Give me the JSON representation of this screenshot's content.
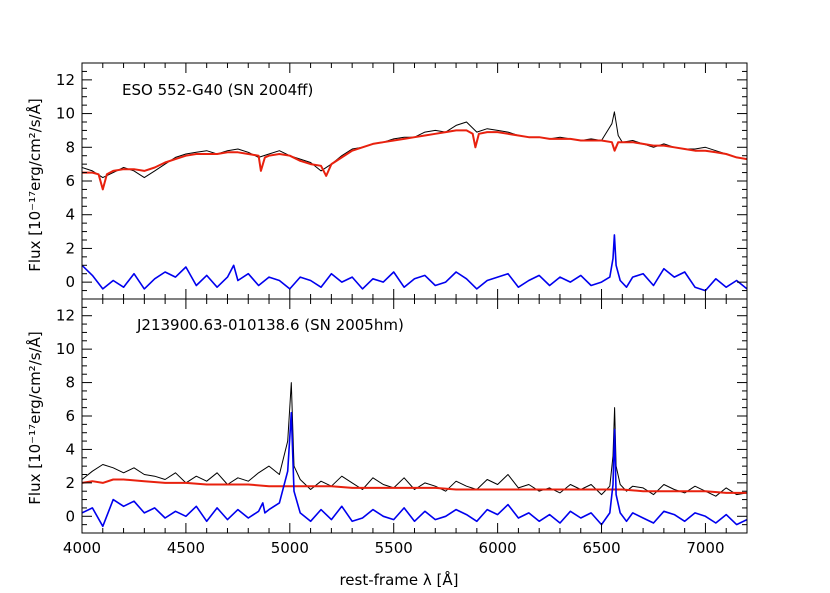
{
  "chart_data": [
    {
      "type": "line",
      "annotation": "ESO 552-G40 (SN 2004ff)",
      "ylabel": "Flux [10⁻¹⁷erg/cm²/s/Å]",
      "xlim": [
        4000,
        7200
      ],
      "ylim": [
        -1,
        13
      ],
      "xticks": [
        4000,
        4500,
        5000,
        5500,
        6000,
        6500,
        7000
      ],
      "yticks": [
        0,
        2,
        4,
        6,
        8,
        10,
        12
      ],
      "colors": {
        "observed": "#000000",
        "model": "#e8210e",
        "residual": "#0000ee"
      },
      "series": [
        {
          "key": "observed",
          "x": [
            4000,
            4050,
            4100,
            4150,
            4200,
            4250,
            4300,
            4350,
            4400,
            4450,
            4500,
            4550,
            4600,
            4650,
            4700,
            4750,
            4800,
            4850,
            4900,
            4950,
            5000,
            5050,
            5100,
            5150,
            5200,
            5250,
            5300,
            5350,
            5400,
            5450,
            5500,
            5550,
            5600,
            5650,
            5700,
            5750,
            5800,
            5850,
            5900,
            5950,
            6000,
            6050,
            6100,
            6150,
            6200,
            6250,
            6300,
            6350,
            6400,
            6450,
            6500,
            6550,
            6562,
            6580,
            6600,
            6650,
            6700,
            6750,
            6800,
            6850,
            6900,
            6950,
            7000,
            7050,
            7100,
            7150,
            7200
          ],
          "y": [
            6.8,
            6.6,
            6.2,
            6.5,
            6.8,
            6.6,
            6.2,
            6.6,
            7.0,
            7.4,
            7.6,
            7.7,
            7.8,
            7.6,
            7.8,
            7.9,
            7.7,
            7.4,
            7.6,
            7.8,
            7.5,
            7.3,
            7.1,
            6.6,
            7.0,
            7.5,
            7.9,
            8.0,
            8.2,
            8.3,
            8.5,
            8.6,
            8.6,
            8.9,
            9.0,
            8.9,
            9.3,
            9.5,
            8.9,
            9.1,
            9.0,
            8.9,
            8.7,
            8.6,
            8.6,
            8.5,
            8.6,
            8.5,
            8.4,
            8.5,
            8.4,
            9.4,
            10.1,
            8.7,
            8.3,
            8.4,
            8.2,
            8.0,
            8.2,
            8.0,
            7.9,
            7.9,
            8.0,
            7.8,
            7.6,
            7.4,
            7.3
          ]
        },
        {
          "key": "model",
          "x": [
            4000,
            4050,
            4080,
            4100,
            4120,
            4150,
            4200,
            4250,
            4300,
            4350,
            4400,
            4450,
            4500,
            4550,
            4600,
            4650,
            4700,
            4750,
            4800,
            4850,
            4861,
            4880,
            4900,
            4950,
            5000,
            5050,
            5100,
            5150,
            5175,
            5200,
            5250,
            5300,
            5350,
            5400,
            5450,
            5500,
            5550,
            5600,
            5650,
            5700,
            5750,
            5800,
            5850,
            5880,
            5893,
            5910,
            5950,
            6000,
            6050,
            6100,
            6150,
            6200,
            6250,
            6300,
            6350,
            6400,
            6450,
            6500,
            6550,
            6563,
            6580,
            6600,
            6650,
            6700,
            6750,
            6800,
            6850,
            6900,
            6950,
            7000,
            7050,
            7100,
            7150,
            7200
          ],
          "y": [
            6.5,
            6.5,
            6.4,
            5.5,
            6.4,
            6.6,
            6.7,
            6.7,
            6.6,
            6.8,
            7.1,
            7.3,
            7.5,
            7.6,
            7.6,
            7.6,
            7.7,
            7.7,
            7.6,
            7.5,
            6.6,
            7.4,
            7.5,
            7.6,
            7.5,
            7.2,
            7.0,
            6.9,
            6.3,
            7.0,
            7.4,
            7.8,
            8.0,
            8.2,
            8.3,
            8.4,
            8.5,
            8.6,
            8.7,
            8.8,
            8.9,
            9.0,
            9.0,
            8.8,
            8.0,
            8.8,
            8.9,
            8.9,
            8.8,
            8.7,
            8.6,
            8.6,
            8.5,
            8.5,
            8.5,
            8.4,
            8.4,
            8.4,
            8.3,
            7.8,
            8.3,
            8.3,
            8.3,
            8.2,
            8.1,
            8.1,
            8.0,
            7.9,
            7.8,
            7.8,
            7.7,
            7.6,
            7.4,
            7.3
          ]
        },
        {
          "key": "residual",
          "x": [
            4000,
            4050,
            4100,
            4150,
            4200,
            4250,
            4300,
            4350,
            4400,
            4450,
            4500,
            4550,
            4600,
            4650,
            4700,
            4730,
            4750,
            4800,
            4850,
            4900,
            4950,
            5000,
            5050,
            5100,
            5150,
            5200,
            5250,
            5300,
            5350,
            5400,
            5450,
            5500,
            5550,
            5600,
            5650,
            5700,
            5750,
            5800,
            5850,
            5900,
            5950,
            6000,
            6050,
            6100,
            6150,
            6200,
            6250,
            6300,
            6350,
            6400,
            6450,
            6500,
            6540,
            6555,
            6562,
            6570,
            6590,
            6620,
            6650,
            6700,
            6750,
            6800,
            6850,
            6900,
            6950,
            7000,
            7050,
            7100,
            7150,
            7200
          ],
          "y": [
            1.0,
            0.4,
            -0.4,
            0.1,
            -0.3,
            0.5,
            -0.4,
            0.2,
            0.6,
            0.3,
            0.9,
            -0.2,
            0.4,
            -0.3,
            0.3,
            1.0,
            0.1,
            0.5,
            -0.2,
            0.3,
            0.1,
            -0.4,
            0.3,
            0.1,
            -0.3,
            0.5,
            0.0,
            0.3,
            -0.4,
            0.2,
            0.0,
            0.6,
            -0.3,
            0.2,
            0.4,
            -0.2,
            0.0,
            0.6,
            0.2,
            -0.4,
            0.1,
            0.3,
            0.5,
            -0.3,
            0.1,
            0.4,
            -0.2,
            0.3,
            0.0,
            0.4,
            -0.2,
            0.0,
            0.3,
            1.4,
            2.8,
            1.0,
            0.1,
            -0.3,
            0.3,
            0.5,
            -0.2,
            0.8,
            0.3,
            0.6,
            -0.3,
            -0.5,
            0.2,
            -0.3,
            0.1,
            -0.4
          ]
        }
      ]
    },
    {
      "type": "line",
      "annotation": "J213900.63-010138.6 (SN 2005hm)",
      "ylabel": "Flux [10⁻¹⁷erg/cm²/s/Å]",
      "xlabel": "rest-frame λ [Å]",
      "xlim": [
        4000,
        7200
      ],
      "ylim": [
        -1,
        13
      ],
      "xticks": [
        4000,
        4500,
        5000,
        5500,
        6000,
        6500,
        7000
      ],
      "xticklabels": [
        "4000",
        "4500",
        "5000",
        "5500",
        "6000",
        "6500",
        "7000"
      ],
      "yticks": [
        0,
        2,
        4,
        6,
        8,
        10,
        12
      ],
      "colors": {
        "observed": "#000000",
        "model": "#e8210e",
        "residual": "#0000ee"
      },
      "series": [
        {
          "key": "observed",
          "x": [
            4000,
            4050,
            4100,
            4150,
            4200,
            4250,
            4300,
            4350,
            4400,
            4450,
            4500,
            4550,
            4600,
            4650,
            4700,
            4750,
            4800,
            4850,
            4900,
            4950,
            4990,
            5007,
            5020,
            5050,
            5100,
            5150,
            5200,
            5250,
            5300,
            5350,
            5400,
            5450,
            5500,
            5550,
            5600,
            5650,
            5700,
            5750,
            5800,
            5850,
            5900,
            5950,
            6000,
            6050,
            6100,
            6150,
            6200,
            6250,
            6300,
            6350,
            6400,
            6450,
            6500,
            6540,
            6555,
            6563,
            6570,
            6590,
            6620,
            6650,
            6700,
            6750,
            6800,
            6850,
            6900,
            6950,
            7000,
            7050,
            7100,
            7150,
            7200
          ],
          "y": [
            2.2,
            2.7,
            3.1,
            2.9,
            2.6,
            2.9,
            2.5,
            2.4,
            2.2,
            2.6,
            2.0,
            2.4,
            2.1,
            2.6,
            1.9,
            2.3,
            2.1,
            2.6,
            3.0,
            2.5,
            4.5,
            8.0,
            3.0,
            2.2,
            1.6,
            2.1,
            1.8,
            2.4,
            2.0,
            1.6,
            2.3,
            1.9,
            1.7,
            2.3,
            1.6,
            2.0,
            1.8,
            1.5,
            2.1,
            1.8,
            1.6,
            2.2,
            1.9,
            2.5,
            1.7,
            1.9,
            1.5,
            1.7,
            1.4,
            1.9,
            1.6,
            1.9,
            1.3,
            1.8,
            3.6,
            6.5,
            3.0,
            1.9,
            1.5,
            1.8,
            1.7,
            1.3,
            1.9,
            1.6,
            1.4,
            1.8,
            1.5,
            1.2,
            1.7,
            1.3,
            1.4
          ]
        },
        {
          "key": "model",
          "x": [
            4000,
            4050,
            4100,
            4150,
            4200,
            4300,
            4400,
            4500,
            4600,
            4700,
            4800,
            4900,
            5000,
            5100,
            5200,
            5300,
            5400,
            5500,
            5600,
            5700,
            5800,
            5900,
            6000,
            6100,
            6200,
            6300,
            6400,
            6500,
            6600,
            6700,
            6800,
            6900,
            7000,
            7100,
            7200
          ],
          "y": [
            2.0,
            2.1,
            2.0,
            2.2,
            2.2,
            2.1,
            2.0,
            2.0,
            1.9,
            1.9,
            1.9,
            1.8,
            1.8,
            1.8,
            1.8,
            1.7,
            1.7,
            1.7,
            1.7,
            1.7,
            1.6,
            1.6,
            1.6,
            1.6,
            1.6,
            1.6,
            1.6,
            1.6,
            1.6,
            1.5,
            1.5,
            1.5,
            1.5,
            1.4,
            1.4
          ]
        },
        {
          "key": "residual",
          "x": [
            4000,
            4050,
            4100,
            4150,
            4200,
            4250,
            4300,
            4350,
            4400,
            4450,
            4500,
            4550,
            4600,
            4650,
            4700,
            4750,
            4800,
            4850,
            4870,
            4880,
            4900,
            4950,
            4990,
            5007,
            5020,
            5050,
            5100,
            5150,
            5200,
            5250,
            5300,
            5350,
            5400,
            5450,
            5500,
            5550,
            5600,
            5650,
            5700,
            5750,
            5800,
            5850,
            5900,
            5950,
            6000,
            6050,
            6100,
            6150,
            6200,
            6250,
            6300,
            6350,
            6400,
            6450,
            6500,
            6540,
            6555,
            6563,
            6570,
            6590,
            6620,
            6650,
            6700,
            6750,
            6800,
            6850,
            6900,
            6950,
            7000,
            7050,
            7100,
            7150,
            7200
          ],
          "y": [
            0.2,
            0.5,
            -0.6,
            1.0,
            0.6,
            0.9,
            0.2,
            0.5,
            -0.1,
            0.3,
            0.0,
            0.6,
            -0.3,
            0.5,
            -0.2,
            0.4,
            -0.1,
            0.3,
            0.8,
            0.2,
            0.4,
            0.8,
            2.7,
            6.2,
            1.5,
            0.2,
            -0.3,
            0.4,
            -0.2,
            0.6,
            -0.3,
            -0.1,
            0.4,
            0.0,
            -0.2,
            0.5,
            -0.3,
            0.3,
            -0.2,
            0.0,
            0.4,
            0.1,
            -0.3,
            0.4,
            0.1,
            0.7,
            -0.1,
            0.2,
            -0.3,
            0.1,
            -0.4,
            0.3,
            -0.1,
            0.2,
            -0.5,
            0.2,
            1.9,
            5.2,
            1.3,
            0.2,
            -0.3,
            0.2,
            -0.1,
            -0.4,
            0.3,
            0.1,
            -0.3,
            0.2,
            0.0,
            -0.4,
            0.1,
            -0.5,
            -0.2
          ]
        }
      ]
    }
  ]
}
